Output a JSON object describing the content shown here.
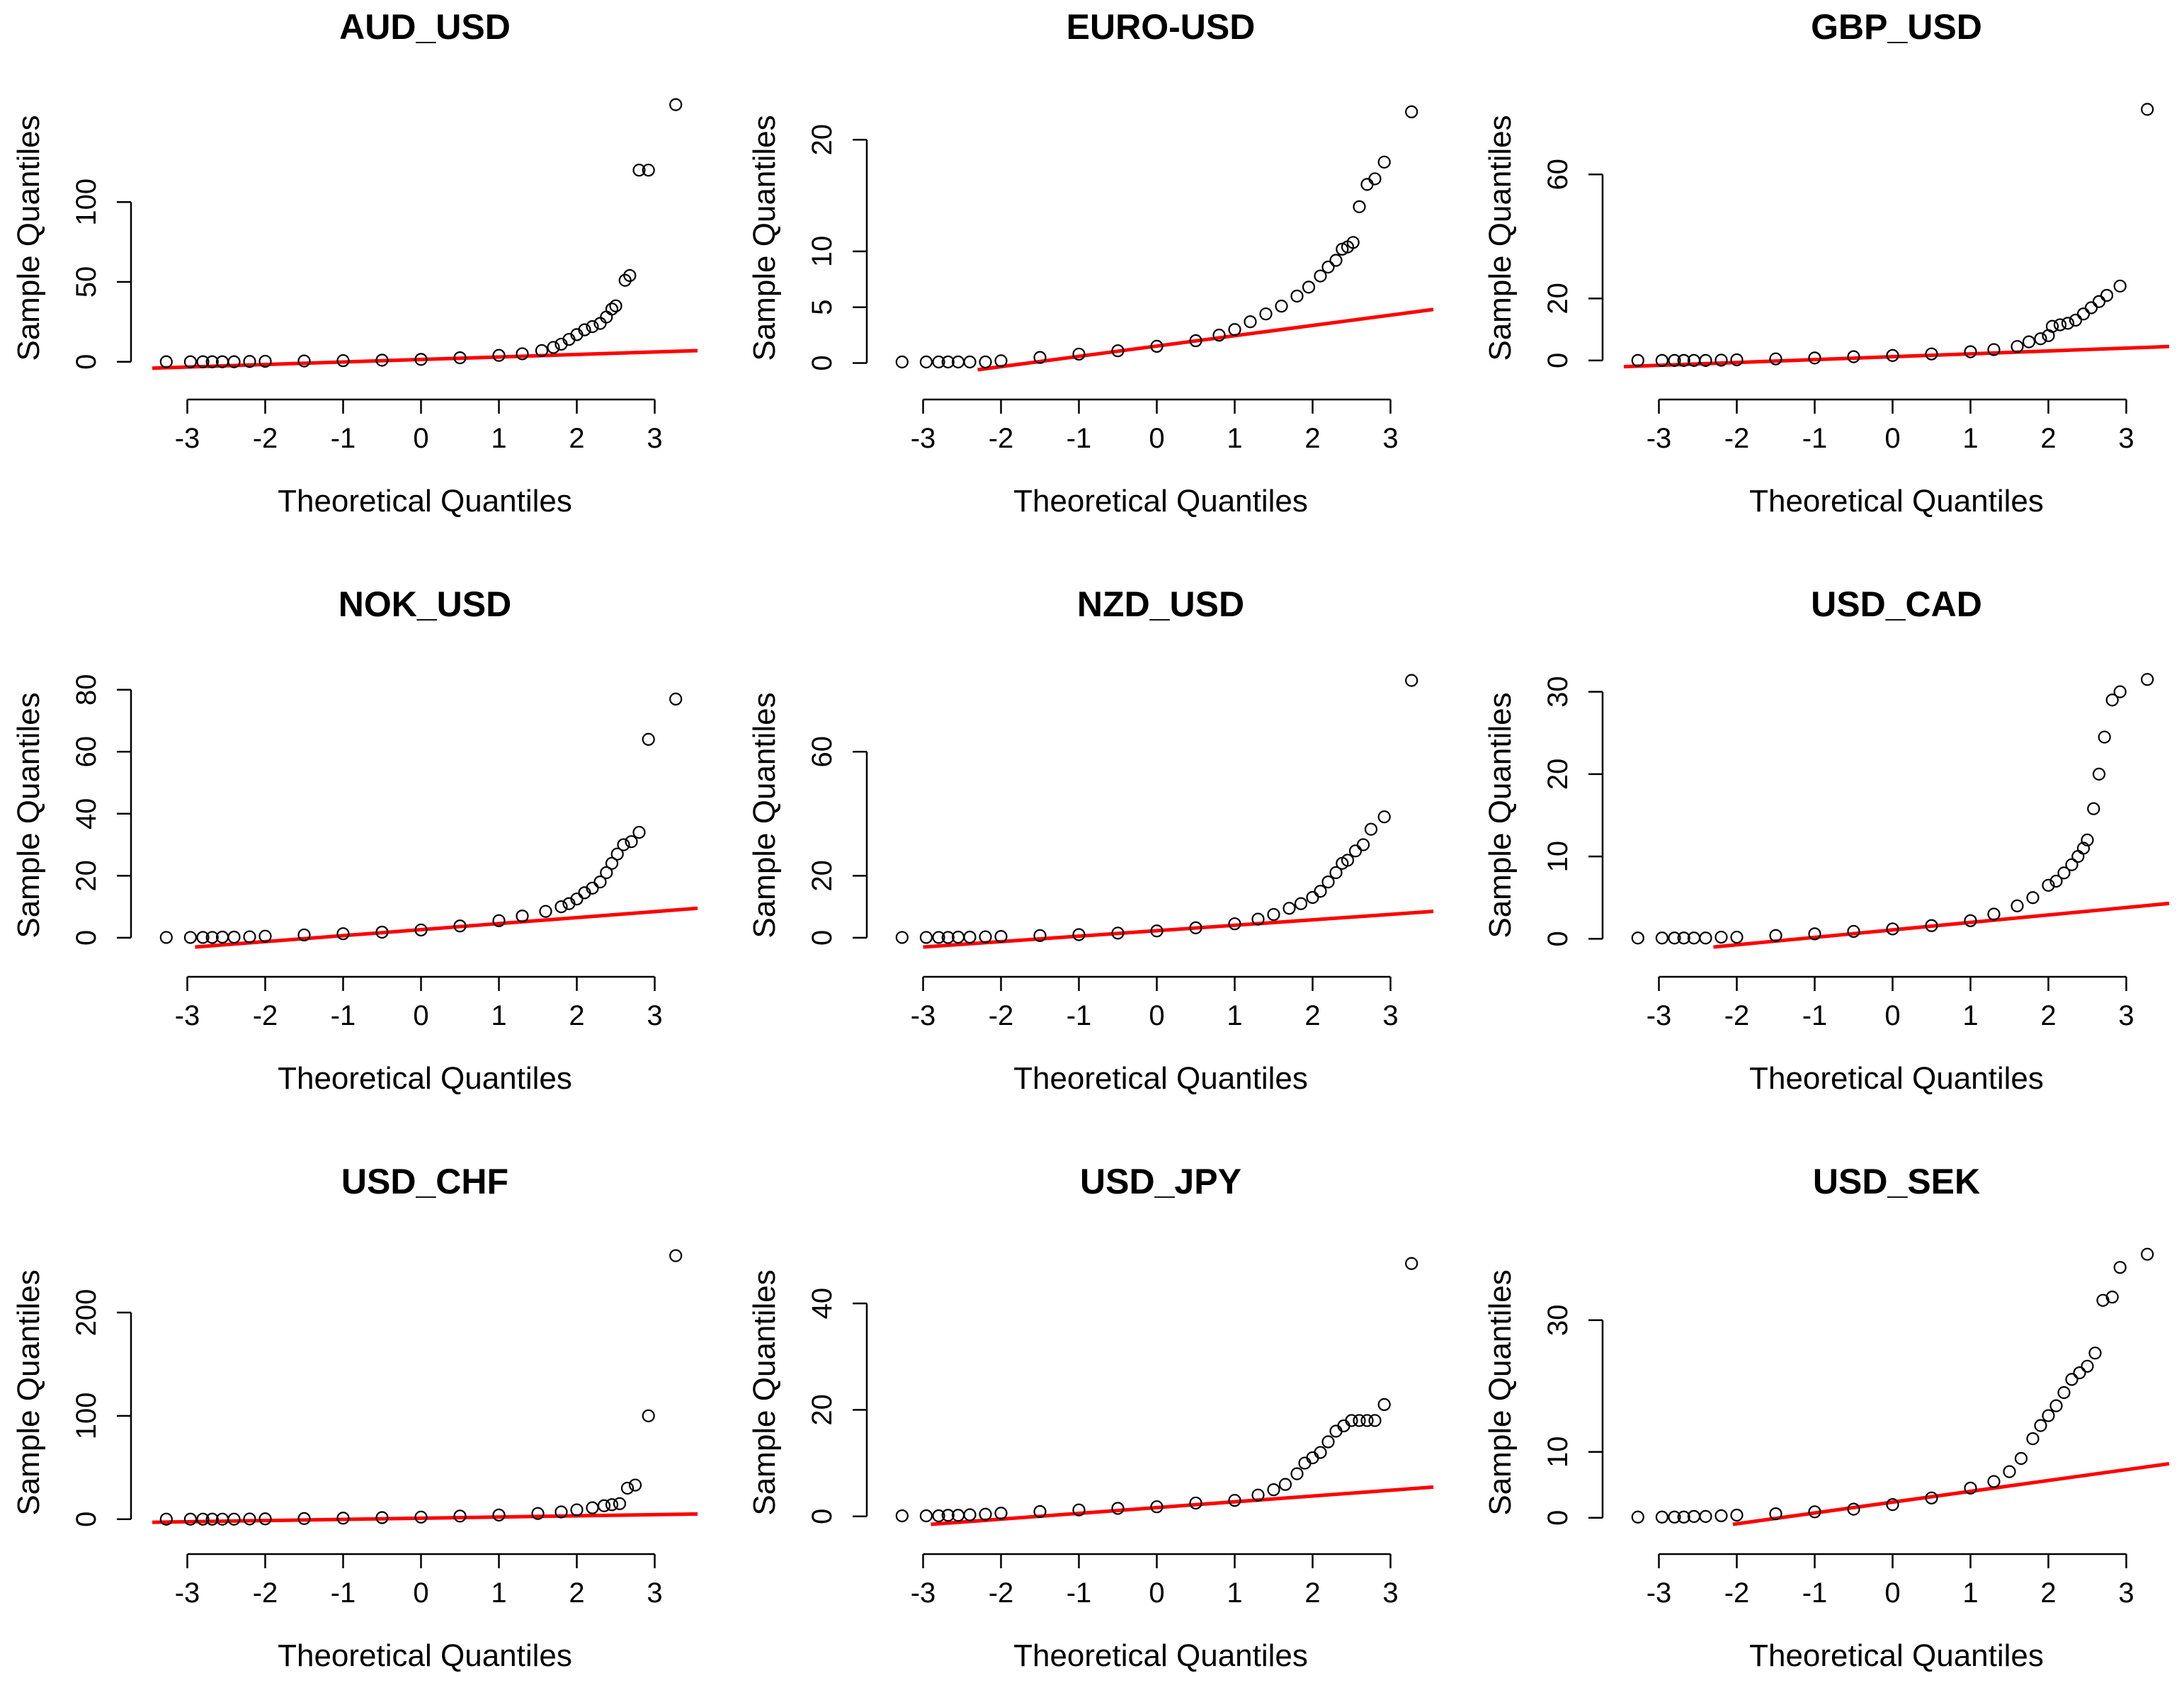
{
  "chart_data": [
    {
      "type": "scatter",
      "title": "AUD_USD",
      "xlabel": "Theoretical Quantiles",
      "ylabel": "Sample Quantiles",
      "xticks": [
        -3,
        -2,
        -1,
        0,
        1,
        2,
        3
      ],
      "yticks": [
        0,
        50,
        100
      ],
      "xlim": [
        -3.45,
        3.55
      ],
      "ylim": [
        -5,
        160
      ],
      "line": {
        "x": [
          -3.45,
          3.55
        ],
        "y": [
          -4.0,
          7.0
        ],
        "color": "#ff0000"
      },
      "points": {
        "x": [
          -3.27,
          -2.96,
          -2.8,
          -2.68,
          -2.55,
          -2.4,
          -2.2,
          -2.0,
          -1.5,
          -1.0,
          -0.5,
          0.0,
          0.5,
          1.0,
          1.3,
          1.55,
          1.7,
          1.8,
          1.9,
          2.0,
          2.1,
          2.2,
          2.3,
          2.38,
          2.45,
          2.5,
          2.62,
          2.68,
          2.8,
          2.92,
          3.27
        ],
        "y": [
          0,
          0,
          0,
          0,
          0,
          0,
          0.2,
          0.3,
          0.5,
          0.7,
          1.0,
          1.5,
          2.5,
          4.0,
          5.0,
          7.0,
          9.0,
          11.0,
          14.0,
          17.0,
          20.0,
          22.0,
          24.0,
          28.0,
          33.0,
          35.0,
          51.0,
          54.0,
          120.0,
          120.0,
          161.0
        ]
      }
    },
    {
      "type": "scatter",
      "title": "EURO-USD",
      "xlabel": "Theoretical Quantiles",
      "ylabel": "Sample Quantiles",
      "xticks": [
        -3,
        -2,
        -1,
        0,
        1,
        2,
        3
      ],
      "yticks": [
        0,
        5,
        10,
        20
      ],
      "xlim": [
        -3.45,
        3.55
      ],
      "ylim": [
        -0.6,
        23
      ],
      "line": {
        "x": [
          -2.3,
          3.55
        ],
        "y": [
          -0.6,
          4.8
        ],
        "color": "#ff0000"
      },
      "points": {
        "x": [
          -3.27,
          -2.96,
          -2.8,
          -2.68,
          -2.55,
          -2.4,
          -2.2,
          -2.0,
          -1.5,
          -1.0,
          -0.5,
          0.0,
          0.5,
          0.8,
          1.0,
          1.2,
          1.4,
          1.6,
          1.8,
          1.95,
          2.1,
          2.2,
          2.3,
          2.38,
          2.45,
          2.52,
          2.6,
          2.7,
          2.8,
          2.92,
          3.27
        ],
        "y": [
          0.1,
          0.1,
          0.1,
          0.1,
          0.1,
          0.1,
          0.1,
          0.2,
          0.5,
          0.8,
          1.1,
          1.5,
          2.0,
          2.5,
          3.0,
          3.7,
          4.4,
          5.1,
          6.0,
          6.8,
          7.8,
          8.6,
          9.2,
          10.2,
          10.4,
          10.8,
          14.0,
          16.0,
          16.5,
          18.0,
          22.5
        ]
      }
    },
    {
      "type": "scatter",
      "title": "GBP_USD",
      "xlabel": "Theoretical Quantiles",
      "ylabel": "Sample Quantiles",
      "xticks": [
        -3,
        -2,
        -1,
        0,
        1,
        2,
        3
      ],
      "yticks": [
        0,
        20,
        60
      ],
      "xlim": [
        -3.45,
        3.55
      ],
      "ylim": [
        -3,
        82
      ],
      "line": {
        "x": [
          -3.45,
          3.55
        ],
        "y": [
          -2.0,
          4.5
        ],
        "color": "#ff0000"
      },
      "points": {
        "x": [
          -3.27,
          -2.96,
          -2.8,
          -2.68,
          -2.55,
          -2.4,
          -2.2,
          -2.0,
          -1.5,
          -1.0,
          -0.5,
          0.0,
          0.5,
          1.0,
          1.3,
          1.6,
          1.75,
          1.9,
          2.0,
          2.05,
          2.15,
          2.25,
          2.35,
          2.45,
          2.55,
          2.65,
          2.75,
          2.92,
          3.27
        ],
        "y": [
          0,
          0,
          0,
          0,
          0,
          0,
          0.1,
          0.2,
          0.5,
          0.8,
          1.2,
          1.6,
          2.1,
          2.8,
          3.5,
          4.5,
          6.0,
          7.0,
          8.0,
          11.0,
          11.5,
          12.0,
          13.0,
          15.0,
          17.0,
          19.0,
          21.0,
          24.0,
          81.0
        ]
      }
    },
    {
      "type": "scatter",
      "title": "NOK_USD",
      "xlabel": "Theoretical Quantiles",
      "ylabel": "Sample Quantiles",
      "xticks": [
        -3,
        -2,
        -1,
        0,
        1,
        2,
        3
      ],
      "yticks": [
        0,
        20,
        40,
        60,
        80
      ],
      "xlim": [
        -3.45,
        3.55
      ],
      "ylim": [
        -3,
        82
      ],
      "line": {
        "x": [
          -2.9,
          3.55
        ],
        "y": [
          -3.0,
          9.5
        ],
        "color": "#ff0000"
      },
      "points": {
        "x": [
          -3.27,
          -2.96,
          -2.8,
          -2.68,
          -2.55,
          -2.4,
          -2.2,
          -2.0,
          -1.5,
          -1.0,
          -0.5,
          0.0,
          0.5,
          1.0,
          1.3,
          1.6,
          1.8,
          1.9,
          2.0,
          2.1,
          2.2,
          2.3,
          2.38,
          2.45,
          2.52,
          2.6,
          2.7,
          2.8,
          2.92,
          3.27
        ],
        "y": [
          0.1,
          0.1,
          0.1,
          0.1,
          0.2,
          0.2,
          0.3,
          0.5,
          0.9,
          1.3,
          1.8,
          2.5,
          3.8,
          5.5,
          7.0,
          8.5,
          10.0,
          11.0,
          12.5,
          14.5,
          16.0,
          18.0,
          21.0,
          24.0,
          27.0,
          30.0,
          31.0,
          34.0,
          64.0,
          77.0
        ]
      }
    },
    {
      "type": "scatter",
      "title": "NZD_USD",
      "xlabel": "Theoretical Quantiles",
      "ylabel": "Sample Quantiles",
      "xticks": [
        -3,
        -2,
        -1,
        0,
        1,
        2,
        3
      ],
      "yticks": [
        0,
        20,
        60
      ],
      "xlim": [
        -3.45,
        3.55
      ],
      "ylim": [
        -3,
        82
      ],
      "line": {
        "x": [
          -3.0,
          3.55
        ],
        "y": [
          -3.0,
          8.5
        ],
        "color": "#ff0000"
      },
      "points": {
        "x": [
          -3.27,
          -2.96,
          -2.8,
          -2.68,
          -2.55,
          -2.4,
          -2.2,
          -2.0,
          -1.5,
          -1.0,
          -0.5,
          0.0,
          0.5,
          1.0,
          1.3,
          1.5,
          1.7,
          1.85,
          2.0,
          2.1,
          2.2,
          2.3,
          2.38,
          2.45,
          2.55,
          2.65,
          2.75,
          2.92,
          3.27
        ],
        "y": [
          0.1,
          0.1,
          0.1,
          0.1,
          0.2,
          0.2,
          0.3,
          0.4,
          0.7,
          1.0,
          1.5,
          2.2,
          3.2,
          4.5,
          6.0,
          7.5,
          9.5,
          11.0,
          13.0,
          15.0,
          18.0,
          21.0,
          24.0,
          25.0,
          28.0,
          30.0,
          35.0,
          39.0,
          83.0
        ]
      }
    },
    {
      "type": "scatter",
      "title": "USD_CAD",
      "xlabel": "Theoretical Quantiles",
      "ylabel": "Sample Quantiles",
      "xticks": [
        -3,
        -2,
        -1,
        0,
        1,
        2,
        3
      ],
      "yticks": [
        0,
        10,
        20,
        30
      ],
      "xlim": [
        -3.45,
        3.55
      ],
      "ylim": [
        -1,
        31
      ],
      "line": {
        "x": [
          -2.3,
          3.55
        ],
        "y": [
          -1.0,
          4.3
        ],
        "color": "#ff0000"
      },
      "points": {
        "x": [
          -3.27,
          -2.96,
          -2.8,
          -2.68,
          -2.55,
          -2.4,
          -2.2,
          -2.0,
          -1.5,
          -1.0,
          -0.5,
          0.0,
          0.5,
          1.0,
          1.3,
          1.6,
          1.8,
          2.0,
          2.1,
          2.2,
          2.3,
          2.38,
          2.45,
          2.5,
          2.58,
          2.65,
          2.72,
          2.82,
          2.92,
          3.27
        ],
        "y": [
          0.1,
          0.1,
          0.1,
          0.1,
          0.1,
          0.1,
          0.2,
          0.2,
          0.4,
          0.6,
          0.9,
          1.2,
          1.6,
          2.2,
          3.0,
          4.0,
          5.0,
          6.5,
          7.0,
          8.0,
          9.0,
          10.0,
          11.0,
          12.0,
          15.8,
          20.0,
          24.5,
          29.0,
          30.0,
          31.5
        ]
      }
    },
    {
      "type": "scatter",
      "title": "USD_CHF",
      "xlabel": "Theoretical Quantiles",
      "ylabel": "Sample Quantiles",
      "xticks": [
        -3,
        -2,
        -1,
        0,
        1,
        2,
        3
      ],
      "yticks": [
        0,
        100,
        200
      ],
      "xlim": [
        -3.45,
        3.55
      ],
      "ylim": [
        -5,
        250
      ],
      "line": {
        "x": [
          -3.45,
          3.55
        ],
        "y": [
          -3.0,
          5.0
        ],
        "color": "#ff0000"
      },
      "points": {
        "x": [
          -3.27,
          -2.96,
          -2.8,
          -2.68,
          -2.55,
          -2.4,
          -2.2,
          -2.0,
          -1.5,
          -1.0,
          -0.5,
          0.0,
          0.5,
          1.0,
          1.5,
          1.8,
          2.0,
          2.2,
          2.35,
          2.45,
          2.55,
          2.65,
          2.75,
          2.92,
          3.27
        ],
        "y": [
          0,
          0,
          0,
          0,
          0,
          0,
          0.2,
          0.3,
          0.6,
          1.0,
          1.5,
          2.0,
          3.0,
          4.0,
          5.5,
          7.0,
          9.0,
          11.0,
          13.0,
          14.0,
          15.0,
          30.0,
          33.0,
          100.0,
          255.0
        ]
      }
    },
    {
      "type": "scatter",
      "title": "USD_JPY",
      "xlabel": "Theoretical Quantiles",
      "ylabel": "Sample Quantiles",
      "xticks": [
        -3,
        -2,
        -1,
        0,
        1,
        2,
        3
      ],
      "yticks": [
        0,
        20,
        40
      ],
      "xlim": [
        -3.45,
        3.55
      ],
      "ylim": [
        -1.5,
        48
      ],
      "line": {
        "x": [
          -2.9,
          3.55
        ],
        "y": [
          -1.5,
          5.5
        ],
        "color": "#ff0000"
      },
      "points": {
        "x": [
          -3.27,
          -2.96,
          -2.8,
          -2.68,
          -2.55,
          -2.4,
          -2.2,
          -2.0,
          -1.5,
          -1.0,
          -0.5,
          0.0,
          0.5,
          1.0,
          1.3,
          1.5,
          1.65,
          1.8,
          1.9,
          2.0,
          2.1,
          2.2,
          2.3,
          2.4,
          2.5,
          2.6,
          2.7,
          2.8,
          2.92,
          3.27
        ],
        "y": [
          0.1,
          0.1,
          0.1,
          0.2,
          0.2,
          0.3,
          0.4,
          0.6,
          0.9,
          1.2,
          1.5,
          1.8,
          2.5,
          3.0,
          4.0,
          5.0,
          6.0,
          8.0,
          10.0,
          11.0,
          12.0,
          14.0,
          16.0,
          17.0,
          18.0,
          18.0,
          18.0,
          18.0,
          21.0,
          47.5
        ]
      }
    },
    {
      "type": "scatter",
      "title": "USD_SEK",
      "xlabel": "Theoretical Quantiles",
      "ylabel": "Sample Quantiles",
      "xticks": [
        -3,
        -2,
        -1,
        0,
        1,
        2,
        3
      ],
      "yticks": [
        0,
        10,
        30
      ],
      "xlim": [
        -3.45,
        3.55
      ],
      "ylim": [
        -1,
        39
      ],
      "line": {
        "x": [
          -2.05,
          3.55
        ],
        "y": [
          -1.0,
          8.2
        ],
        "color": "#ff0000"
      },
      "points": {
        "x": [
          -3.27,
          -2.96,
          -2.8,
          -2.68,
          -2.55,
          -2.4,
          -2.2,
          -2.0,
          -1.5,
          -1.0,
          -0.5,
          0.0,
          0.5,
          1.0,
          1.3,
          1.5,
          1.65,
          1.8,
          1.9,
          2.0,
          2.1,
          2.2,
          2.3,
          2.4,
          2.5,
          2.6,
          2.7,
          2.82,
          2.92,
          3.27
        ],
        "y": [
          0.1,
          0.1,
          0.1,
          0.1,
          0.2,
          0.2,
          0.3,
          0.4,
          0.6,
          0.9,
          1.3,
          2.0,
          3.0,
          4.5,
          5.5,
          7.0,
          9.0,
          12.0,
          14.0,
          15.5,
          17.0,
          19.0,
          21.0,
          22.0,
          23.0,
          25.0,
          33.0,
          33.5,
          38.0,
          40.0
        ]
      }
    }
  ]
}
